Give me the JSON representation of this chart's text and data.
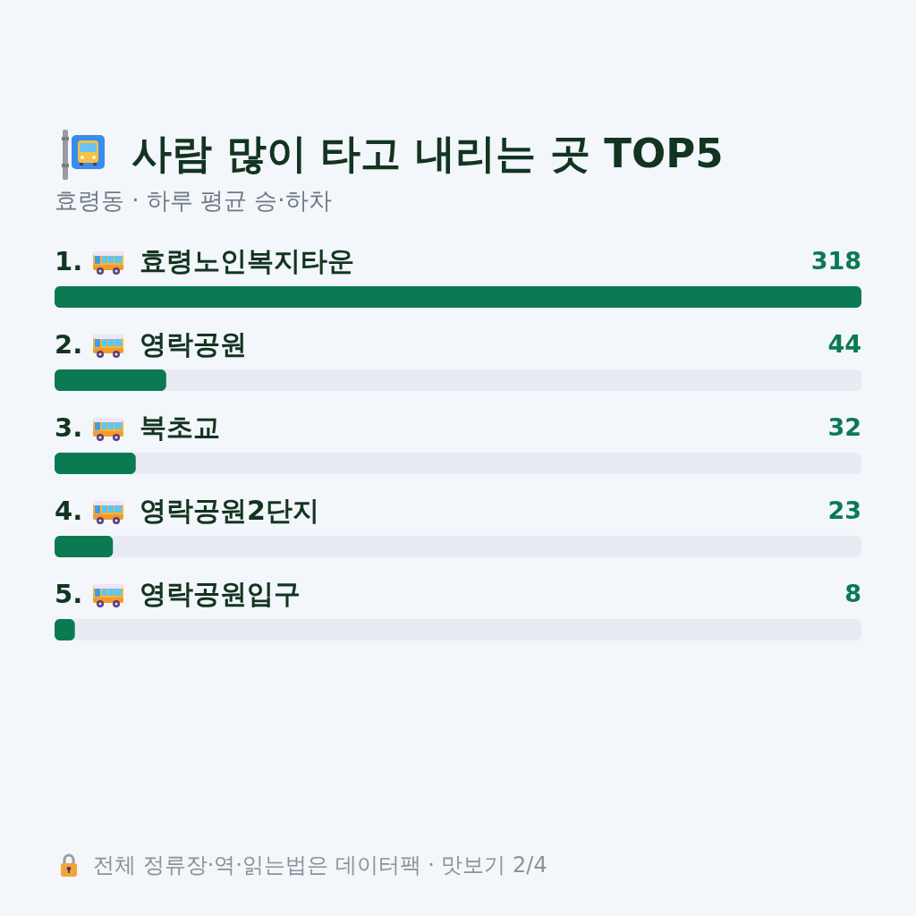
{
  "chart_data": {
    "type": "bar",
    "orientation": "horizontal",
    "title": "사람 많이 타고 내리는 곳 TOP5",
    "subtitle": "효령동 · 하루 평균 승·하차",
    "categories": [
      "1. 효령노인복지타운",
      "2. 영락공원",
      "3. 북초교",
      "4. 영락공원2단지",
      "5. 영락공원입구"
    ],
    "values": [
      318,
      44,
      32,
      23,
      8
    ],
    "color": "#0b7a52",
    "data_labels": true,
    "xlim": [
      0,
      318
    ],
    "tick_labels": "y",
    "annotations": [
      "전체 정류장·역·읽는법은 데이터팩 · 맛보기 2/4"
    ]
  }
}
